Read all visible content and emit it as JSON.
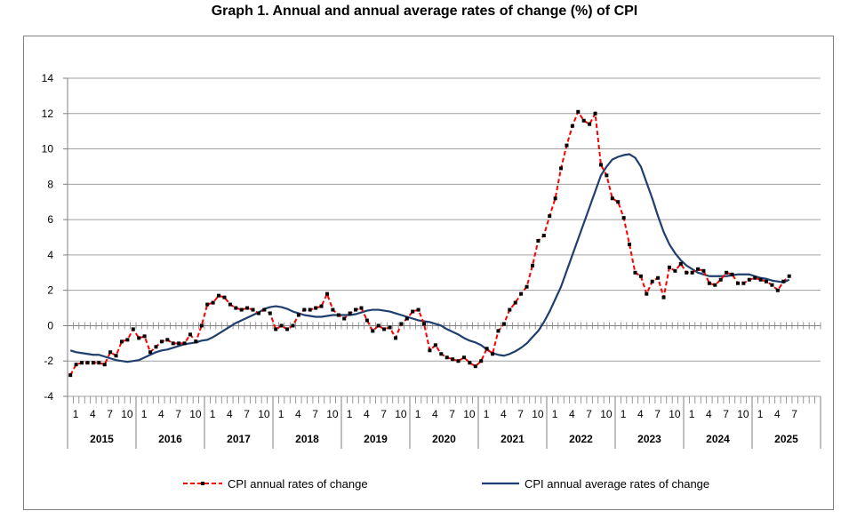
{
  "chart_data": {
    "type": "line",
    "title": "Graph 1. Annual and annual average rates of change (%) of CPI",
    "xlabel": "",
    "ylabel": "",
    "ylim": [
      -4,
      14
    ],
    "yticks": [
      -4,
      -2,
      0,
      2,
      4,
      6,
      8,
      10,
      12,
      14
    ],
    "grid": "horizontal",
    "legend_position": "bottom",
    "years": [
      "2015",
      "2016",
      "2017",
      "2018",
      "2019",
      "2020",
      "2021",
      "2022",
      "2023",
      "2024",
      "2025"
    ],
    "month_tick_labels": [
      "1",
      "4",
      "7",
      "10"
    ],
    "colors": {
      "annual": "#ff0000",
      "annual_markers": "#000000",
      "average": "#1f3f6e",
      "grid": "#a0a0a0",
      "axis": "#808080",
      "frame": "#808080"
    },
    "series": [
      {
        "name": "CPI annual rates of change",
        "style": "dashed-with-markers",
        "values": [
          -2.8,
          -2.2,
          -2.1,
          -2.1,
          -2.1,
          -2.1,
          -2.2,
          -1.5,
          -1.7,
          -0.9,
          -0.8,
          -0.2,
          -0.7,
          -0.6,
          -1.5,
          -1.2,
          -0.9,
          -0.8,
          -1.0,
          -1.0,
          -1.0,
          -0.5,
          -0.9,
          0.0,
          1.2,
          1.3,
          1.7,
          1.6,
          1.2,
          1.0,
          0.9,
          1.0,
          0.9,
          0.7,
          0.9,
          0.7,
          -0.2,
          0.0,
          -0.2,
          0.0,
          0.6,
          0.9,
          0.9,
          1.0,
          1.1,
          1.8,
          0.9,
          0.6,
          0.4,
          0.7,
          0.9,
          1.0,
          0.3,
          -0.3,
          0.0,
          -0.2,
          -0.1,
          -0.7,
          0.1,
          0.4,
          0.8,
          0.9,
          0.1,
          -1.4,
          -1.1,
          -1.6,
          -1.8,
          -1.9,
          -2.0,
          -1.8,
          -2.1,
          -2.3,
          -2.0,
          -1.3,
          -1.6,
          -0.3,
          0.1,
          0.9,
          1.3,
          1.8,
          2.2,
          3.4,
          4.8,
          5.1,
          6.2,
          7.2,
          8.9,
          10.2,
          11.3,
          12.1,
          11.6,
          11.4,
          12.0,
          9.1,
          8.5,
          7.2,
          7.0,
          6.1,
          4.6,
          3.0,
          2.8,
          1.8,
          2.5,
          2.7,
          1.6,
          3.3,
          3.1,
          3.5,
          3.0,
          3.0,
          3.2,
          3.1,
          2.4,
          2.3,
          2.6,
          3.0,
          2.9,
          2.4,
          2.4,
          2.6,
          2.7,
          2.6,
          2.5,
          2.3,
          2.0,
          2.5,
          2.8
        ]
      },
      {
        "name": "CPI annual average rates of change",
        "style": "solid",
        "values": [
          -1.4,
          -1.5,
          -1.55,
          -1.6,
          -1.65,
          -1.65,
          -1.75,
          -1.85,
          -1.95,
          -2.0,
          -2.05,
          -2.0,
          -1.95,
          -1.8,
          -1.65,
          -1.5,
          -1.4,
          -1.35,
          -1.25,
          -1.15,
          -1.05,
          -1.0,
          -0.95,
          -0.85,
          -0.8,
          -0.65,
          -0.45,
          -0.25,
          -0.05,
          0.15,
          0.3,
          0.45,
          0.6,
          0.75,
          0.95,
          1.05,
          1.1,
          1.05,
          0.95,
          0.8,
          0.7,
          0.6,
          0.55,
          0.5,
          0.5,
          0.55,
          0.6,
          0.6,
          0.6,
          0.6,
          0.65,
          0.75,
          0.85,
          0.9,
          0.9,
          0.85,
          0.8,
          0.7,
          0.6,
          0.5,
          0.4,
          0.3,
          0.25,
          0.2,
          0.1,
          0.0,
          -0.2,
          -0.35,
          -0.5,
          -0.7,
          -0.85,
          -0.95,
          -1.1,
          -1.35,
          -1.55,
          -1.65,
          -1.7,
          -1.6,
          -1.45,
          -1.25,
          -1.0,
          -0.65,
          -0.3,
          0.2,
          0.8,
          1.5,
          2.2,
          3.1,
          4.0,
          4.9,
          5.8,
          6.7,
          7.6,
          8.5,
          9.0,
          9.4,
          9.55,
          9.65,
          9.7,
          9.5,
          9.0,
          8.1,
          7.2,
          6.2,
          5.3,
          4.6,
          4.1,
          3.7,
          3.4,
          3.2,
          3.0,
          2.9,
          2.8,
          2.8,
          2.8,
          2.8,
          2.85,
          2.9,
          2.9,
          2.9,
          2.8,
          2.7,
          2.65,
          2.55,
          2.5,
          2.45,
          2.6
        ]
      }
    ]
  }
}
